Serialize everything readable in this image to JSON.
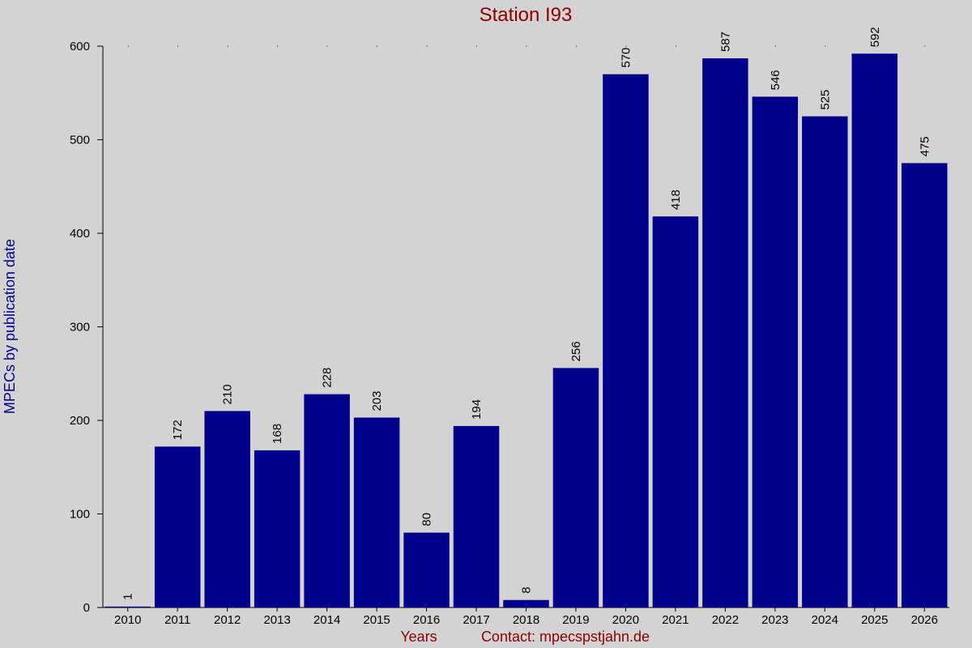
{
  "chart_data": {
    "type": "bar",
    "title": "Station I93",
    "xlabel": "Years",
    "ylabel": "MPECs by publication date",
    "contact": "Contact: mpecspstjahn.de",
    "categories": [
      "2010",
      "2011",
      "2012",
      "2013",
      "2014",
      "2015",
      "2016",
      "2017",
      "2018",
      "2019",
      "2020",
      "2021",
      "2022",
      "2023",
      "2024",
      "2025",
      "2026"
    ],
    "values": [
      1,
      172,
      210,
      168,
      228,
      203,
      80,
      194,
      8,
      256,
      570,
      418,
      587,
      546,
      525,
      592,
      475
    ],
    "ylim": [
      0,
      600
    ],
    "yticks": [
      0,
      100,
      200,
      300,
      400,
      500,
      600
    ],
    "grid": "dotted at top",
    "colors": {
      "bar": "#00008b",
      "title": "#8b0000",
      "ylabel": "#00008b",
      "background": "#d3d3d3"
    }
  }
}
